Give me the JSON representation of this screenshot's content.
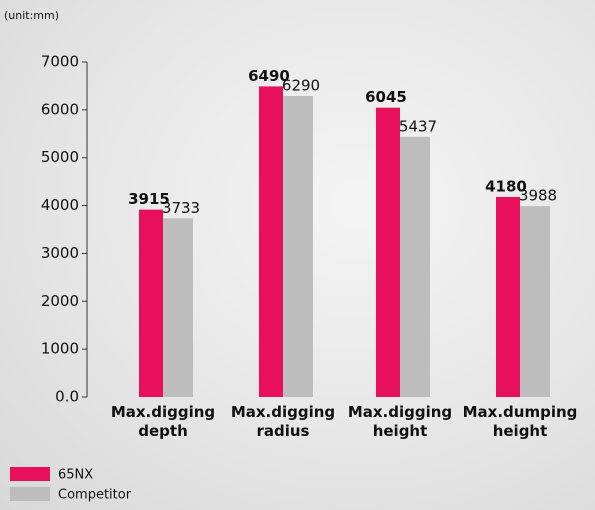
{
  "chart_data": {
    "type": "bar",
    "unit_label": "(unit:mm)",
    "categories": [
      "Max.digging depth",
      "Max.digging radius",
      "Max.digging height",
      "Max.dumping height"
    ],
    "series": [
      {
        "name": "65NX",
        "color": "#e8105a",
        "values": [
          3915,
          6490,
          6045,
          4180
        ]
      },
      {
        "name": "Competitor",
        "color": "#bdbdbd",
        "values": [
          3733,
          6290,
          5437,
          3988
        ]
      }
    ],
    "ylim": [
      0,
      7000
    ],
    "yticks": [
      {
        "value": 0,
        "label": "0.0"
      },
      1000,
      2000,
      3000,
      4000,
      5000,
      6000,
      7000
    ]
  }
}
